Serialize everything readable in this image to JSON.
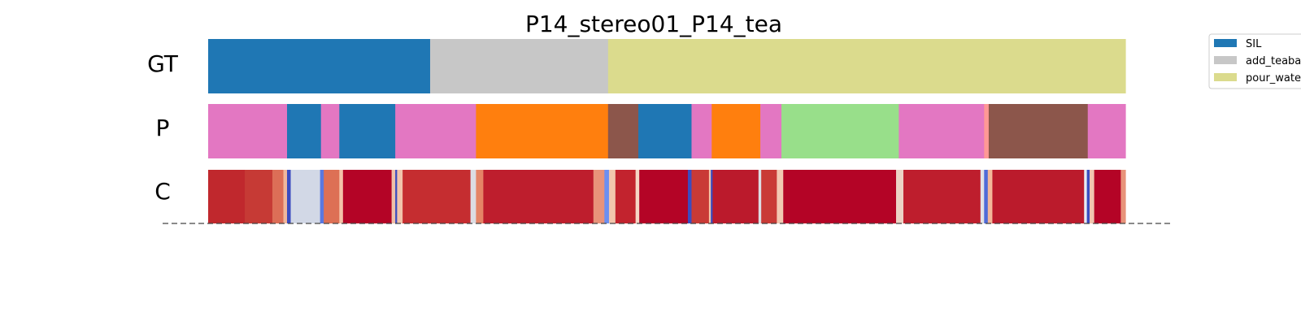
{
  "chart_data": {
    "type": "segmentation",
    "title": "P14_stereo01_P14_tea",
    "rows": [
      "GT",
      "P",
      "C"
    ],
    "x_range": [
      0,
      1
    ],
    "legend": {
      "placement": "top-right",
      "entries": [
        {
          "label": "SIL",
          "color": "#1f77b4"
        },
        {
          "label": "add_teabag",
          "color": "#c7c7c7"
        },
        {
          "label": "pour_water",
          "color": "#dbdb8d"
        }
      ]
    },
    "gt_segments": [
      {
        "label": "SIL",
        "start": 0.0,
        "end": 0.242,
        "color": "#1f77b4"
      },
      {
        "label": "add_teabag",
        "start": 0.242,
        "end": 0.436,
        "color": "#c7c7c7"
      },
      {
        "label": "pour_water",
        "start": 0.436,
        "end": 1.0,
        "color": "#dbdb8d"
      }
    ],
    "pred_segments": [
      {
        "start": 0.0,
        "end": 0.086,
        "color": "#e377c2"
      },
      {
        "start": 0.086,
        "end": 0.123,
        "color": "#1f77b4"
      },
      {
        "start": 0.123,
        "end": 0.143,
        "color": "#e377c2"
      },
      {
        "start": 0.143,
        "end": 0.204,
        "color": "#1f77b4"
      },
      {
        "start": 0.204,
        "end": 0.292,
        "color": "#e377c2"
      },
      {
        "start": 0.292,
        "end": 0.436,
        "color": "#ff7f0e"
      },
      {
        "start": 0.436,
        "end": 0.469,
        "color": "#8c564b"
      },
      {
        "start": 0.469,
        "end": 0.527,
        "color": "#1f77b4"
      },
      {
        "start": 0.527,
        "end": 0.549,
        "color": "#e377c2"
      },
      {
        "start": 0.549,
        "end": 0.602,
        "color": "#ff7f0e"
      },
      {
        "start": 0.602,
        "end": 0.625,
        "color": "#e377c2"
      },
      {
        "start": 0.625,
        "end": 0.753,
        "color": "#98df8a"
      },
      {
        "start": 0.753,
        "end": 0.846,
        "color": "#e377c2"
      },
      {
        "start": 0.846,
        "end": 0.851,
        "color": "#ff9896"
      },
      {
        "start": 0.851,
        "end": 0.959,
        "color": "#8c564b"
      },
      {
        "start": 0.959,
        "end": 1.0,
        "color": "#e377c2"
      }
    ],
    "confidence_segments": [
      {
        "start": 0.0,
        "end": 0.04,
        "color": "#c0282d"
      },
      {
        "start": 0.04,
        "end": 0.07,
        "color": "#c63a35"
      },
      {
        "start": 0.07,
        "end": 0.082,
        "color": "#dc6e57"
      },
      {
        "start": 0.082,
        "end": 0.086,
        "color": "#f0b79c"
      },
      {
        "start": 0.086,
        "end": 0.09,
        "color": "#3b4cc0"
      },
      {
        "start": 0.09,
        "end": 0.122,
        "color": "#d2d8e6"
      },
      {
        "start": 0.122,
        "end": 0.126,
        "color": "#5a78e0"
      },
      {
        "start": 0.126,
        "end": 0.143,
        "color": "#dd7055"
      },
      {
        "start": 0.143,
        "end": 0.147,
        "color": "#f4c2a8"
      },
      {
        "start": 0.147,
        "end": 0.2,
        "color": "#b40426"
      },
      {
        "start": 0.2,
        "end": 0.204,
        "color": "#f0c0a8"
      },
      {
        "start": 0.204,
        "end": 0.206,
        "color": "#3b4cc0"
      },
      {
        "start": 0.206,
        "end": 0.212,
        "color": "#f2c4ac"
      },
      {
        "start": 0.212,
        "end": 0.286,
        "color": "#c52d30"
      },
      {
        "start": 0.286,
        "end": 0.292,
        "color": "#dcdde3"
      },
      {
        "start": 0.292,
        "end": 0.3,
        "color": "#e58466"
      },
      {
        "start": 0.3,
        "end": 0.42,
        "color": "#be1e2d"
      },
      {
        "start": 0.42,
        "end": 0.432,
        "color": "#e8937a"
      },
      {
        "start": 0.432,
        "end": 0.437,
        "color": "#6c8ff1"
      },
      {
        "start": 0.437,
        "end": 0.444,
        "color": "#f2c6ad"
      },
      {
        "start": 0.444,
        "end": 0.466,
        "color": "#c2232e"
      },
      {
        "start": 0.466,
        "end": 0.47,
        "color": "#f6d6c6"
      },
      {
        "start": 0.47,
        "end": 0.523,
        "color": "#b40426"
      },
      {
        "start": 0.523,
        "end": 0.527,
        "color": "#3b4cc0"
      },
      {
        "start": 0.527,
        "end": 0.546,
        "color": "#c93a36"
      },
      {
        "start": 0.546,
        "end": 0.548,
        "color": "#f1c3a8"
      },
      {
        "start": 0.548,
        "end": 0.55,
        "color": "#3b4cc0"
      },
      {
        "start": 0.55,
        "end": 0.6,
        "color": "#bb1a2c"
      },
      {
        "start": 0.6,
        "end": 0.603,
        "color": "#dcdde3"
      },
      {
        "start": 0.603,
        "end": 0.62,
        "color": "#c93a36"
      },
      {
        "start": 0.62,
        "end": 0.627,
        "color": "#f2c8b2"
      },
      {
        "start": 0.627,
        "end": 0.75,
        "color": "#b40426"
      },
      {
        "start": 0.75,
        "end": 0.758,
        "color": "#ecd3c5"
      },
      {
        "start": 0.758,
        "end": 0.842,
        "color": "#be1e2d"
      },
      {
        "start": 0.842,
        "end": 0.846,
        "color": "#e3e2e5"
      },
      {
        "start": 0.846,
        "end": 0.85,
        "color": "#4f6bd8"
      },
      {
        "start": 0.85,
        "end": 0.855,
        "color": "#f3b89a"
      },
      {
        "start": 0.855,
        "end": 0.955,
        "color": "#bb1b2c"
      },
      {
        "start": 0.955,
        "end": 0.958,
        "color": "#e8ebf2"
      },
      {
        "start": 0.958,
        "end": 0.961,
        "color": "#3b4cc0"
      },
      {
        "start": 0.961,
        "end": 0.966,
        "color": "#f1c6b0"
      },
      {
        "start": 0.966,
        "end": 0.995,
        "color": "#b40426"
      },
      {
        "start": 0.995,
        "end": 1.0,
        "color": "#e8937a"
      }
    ]
  }
}
